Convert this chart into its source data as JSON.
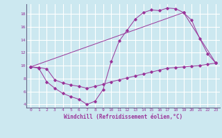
{
  "xlabel": "Windchill (Refroidissement éolien,°C)",
  "bg_color": "#cce8f0",
  "line_color": "#993399",
  "xlim": [
    -0.5,
    23.5
  ],
  "ylim": [
    3.5,
    19.5
  ],
  "yticks": [
    4,
    6,
    8,
    10,
    12,
    14,
    16,
    18
  ],
  "xticks": [
    0,
    1,
    2,
    3,
    4,
    5,
    6,
    7,
    8,
    9,
    10,
    11,
    12,
    13,
    14,
    15,
    16,
    17,
    18,
    19,
    20,
    21,
    22,
    23
  ],
  "series1_x": [
    0,
    1,
    2,
    3,
    4,
    5,
    6,
    7,
    8,
    9,
    10,
    11,
    12,
    13,
    14,
    15,
    16,
    17,
    18,
    19,
    20,
    21,
    22,
    23
  ],
  "series1_y": [
    9.8,
    9.6,
    7.5,
    6.5,
    5.7,
    5.2,
    4.8,
    4.0,
    4.5,
    6.3,
    10.6,
    13.8,
    15.5,
    17.2,
    18.2,
    18.6,
    18.5,
    18.9,
    18.8,
    18.2,
    17.0,
    14.2,
    11.8,
    10.4
  ],
  "series2_x": [
    0,
    19,
    23
  ],
  "series2_y": [
    9.8,
    18.2,
    10.4
  ],
  "series3_x": [
    0,
    1,
    2,
    3,
    4,
    5,
    6,
    7,
    8,
    9,
    10,
    11,
    12,
    13,
    14,
    15,
    16,
    17,
    18,
    19,
    20,
    21,
    22,
    23
  ],
  "series3_y": [
    9.8,
    9.7,
    9.5,
    7.8,
    7.3,
    7.0,
    6.8,
    6.5,
    6.8,
    7.1,
    7.5,
    7.8,
    8.1,
    8.4,
    8.7,
    9.0,
    9.3,
    9.6,
    9.7,
    9.8,
    9.9,
    10.0,
    10.2,
    10.4
  ]
}
